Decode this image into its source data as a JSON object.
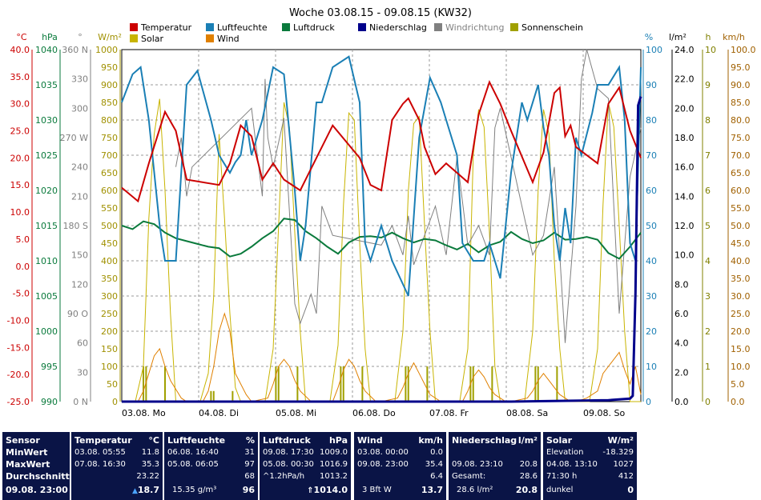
{
  "title": "Woche 03.08.15 - 09.08.15 (KW32)",
  "legend": [
    {
      "label": "Temperatur",
      "color": "#cc0000"
    },
    {
      "label": "Luftfeuchte",
      "color": "#1a7fb5"
    },
    {
      "label": "Luftdruck",
      "color": "#0a7a3c"
    },
    {
      "label": "Niederschlag",
      "color": "#00008b"
    },
    {
      "label": "Windrichtung",
      "color": "#808080"
    },
    {
      "label": "Sonnenschein",
      "color": "#a0a000"
    },
    {
      "label": "Solar",
      "color": "#c8b400"
    },
    {
      "label": "Wind",
      "color": "#e08000"
    }
  ],
  "axes": {
    "temp": {
      "unit": "°C",
      "ticks": [
        "40.0",
        "35.0",
        "30.0",
        "25.0",
        "20.0",
        "15.0",
        "10.0",
        "5.0",
        "0.0",
        "-5.0",
        "-10.0",
        "-15.0",
        "-20.0",
        "-25.0"
      ],
      "color": "#cc0000"
    },
    "hpa": {
      "unit": "hPa",
      "ticks": [
        "1040",
        "1035",
        "1030",
        "1025",
        "1020",
        "1015",
        "1010",
        "1005",
        "1000",
        "995",
        "990"
      ],
      "color": "#0a7a3c"
    },
    "dir": {
      "unit": "°",
      "ticks": [
        "360 N",
        "330",
        "300",
        "270 W",
        "240",
        "210",
        "180 S",
        "150",
        "120",
        "90 O",
        "60",
        "30",
        "0 N"
      ],
      "color": "#808080"
    },
    "solar": {
      "unit": "W/m²",
      "ticks": [
        "1000",
        "950",
        "900",
        "850",
        "800",
        "750",
        "700",
        "650",
        "600",
        "550",
        "500",
        "450",
        "400",
        "350",
        "300",
        "250",
        "200",
        "150",
        "100",
        "50",
        "0"
      ],
      "color": "#a09000"
    },
    "hum": {
      "unit": "%",
      "ticks": [
        "100",
        "90",
        "80",
        "70",
        "60",
        "50",
        "40",
        "30",
        "20",
        "10",
        "0"
      ],
      "color": "#1a7fb5"
    },
    "rain": {
      "unit": "l/m²",
      "ticks": [
        "24.0",
        "22.0",
        "20.0",
        "18.0",
        "16.0",
        "14.0",
        "12.0",
        "10.0",
        "8.0",
        "6.0",
        "4.0",
        "2.0",
        "0.0"
      ],
      "color": "#000000"
    },
    "sun": {
      "unit": "h",
      "ticks": [
        "10",
        "9",
        "8",
        "7",
        "6",
        "5",
        "4",
        "3",
        "2",
        "1",
        "0"
      ],
      "color": "#808000"
    },
    "wind": {
      "unit": "km/h",
      "ticks": [
        "100.0",
        "95.0",
        "90.0",
        "85.0",
        "80.0",
        "75.0",
        "70.0",
        "65.0",
        "60.0",
        "55.0",
        "50.0",
        "45.0",
        "40.0",
        "35.0",
        "30.0",
        "25.0",
        "20.0",
        "15.0",
        "10.0",
        "5.0",
        "0.0"
      ],
      "color": "#a06000"
    }
  },
  "days": [
    "03.08.  Mo",
    "04.08.  Di",
    "05.08.  Mi",
    "06.08.  Do",
    "07.08.  Fr",
    "08.08.  Sa",
    "09.08.  So"
  ],
  "chart_data": {
    "type": "line",
    "title": "Woche 03.08.15 - 09.08.15 (KW32)",
    "x_days": [
      "03.08.",
      "04.08.",
      "05.08.",
      "06.08.",
      "07.08.",
      "08.08.",
      "09.08."
    ],
    "series": [
      {
        "name": "Temperatur",
        "axis": "°C",
        "x_hours": [
          0,
          6,
          10,
          16,
          20,
          24,
          36,
          40,
          44,
          48,
          52,
          56,
          60,
          66,
          72,
          78,
          88,
          92,
          96,
          100,
          104,
          106,
          110,
          112,
          116,
          120,
          128,
          132,
          136,
          140,
          144,
          152,
          156,
          160,
          162,
          164,
          166,
          168,
          176,
          180,
          184,
          188,
          192
        ],
        "values": [
          14.5,
          12.0,
          19.0,
          28.5,
          25.0,
          16.0,
          15.0,
          19.0,
          26.0,
          24.0,
          16.0,
          19.0,
          16.0,
          14.0,
          20.0,
          26.0,
          20.0,
          15.0,
          14.0,
          27.0,
          30.0,
          31.0,
          27.0,
          22.0,
          17.0,
          19.0,
          15.5,
          28.0,
          34.0,
          30.0,
          25.0,
          15.5,
          21.0,
          32.0,
          33.0,
          24.0,
          26.0,
          22.0,
          19.0,
          30.0,
          33.0,
          25.0,
          20.0
        ]
      },
      {
        "name": "Luftfeuchte",
        "axis": "%",
        "x_hours": [
          0,
          4,
          7,
          10,
          14,
          16,
          20,
          24,
          28,
          33,
          36,
          40,
          42,
          44,
          46,
          48,
          52,
          56,
          60,
          64,
          66,
          68,
          72,
          74,
          78,
          84,
          88,
          90,
          92,
          96,
          100,
          106,
          110,
          114,
          118,
          120,
          124,
          126,
          130,
          134,
          136,
          140,
          144,
          148,
          150,
          154,
          156,
          158,
          160,
          162,
          164,
          166,
          168,
          170,
          174,
          176,
          180,
          184,
          186,
          188,
          190,
          192
        ],
        "values": [
          85,
          93,
          95,
          80,
          50,
          40,
          40,
          90,
          94,
          80,
          70,
          65,
          68,
          70,
          80,
          70,
          80,
          95,
          93,
          60,
          40,
          50,
          85,
          85,
          95,
          98,
          85,
          45,
          40,
          50,
          40,
          30,
          75,
          92,
          85,
          80,
          70,
          45,
          40,
          40,
          45,
          35,
          65,
          85,
          80,
          90,
          78,
          70,
          50,
          40,
          55,
          45,
          75,
          70,
          82,
          90,
          90,
          95,
          80,
          45,
          40,
          95
        ]
      },
      {
        "name": "Luftdruck",
        "axis": "hPa",
        "x_hours": [
          0,
          4,
          8,
          12,
          16,
          20,
          24,
          28,
          32,
          36,
          40,
          44,
          48,
          52,
          56,
          60,
          64,
          68,
          72,
          76,
          80,
          84,
          88,
          92,
          96,
          100,
          104,
          108,
          112,
          116,
          120,
          124,
          128,
          132,
          136,
          140,
          144,
          148,
          152,
          156,
          160,
          164,
          168,
          172,
          176,
          180,
          184,
          188,
          192
        ],
        "values": [
          1015.0,
          1014.5,
          1015.6,
          1015.2,
          1014.0,
          1013.2,
          1012.8,
          1012.4,
          1012.0,
          1011.8,
          1010.6,
          1011.0,
          1012.0,
          1013.2,
          1014.2,
          1016.0,
          1015.8,
          1014.2,
          1013.2,
          1012.0,
          1011.0,
          1012.6,
          1013.4,
          1013.5,
          1013.3,
          1014.0,
          1013.2,
          1012.6,
          1013.1,
          1012.9,
          1012.2,
          1011.6,
          1012.4,
          1011.2,
          1012.2,
          1012.7,
          1014.1,
          1013.1,
          1012.5,
          1012.9,
          1014.0,
          1013.0,
          1013.1,
          1013.4,
          1013.0,
          1011.1,
          1010.3,
          1012.0,
          1014.0
        ]
      },
      {
        "name": "Niederschlag",
        "axis": "l/m²",
        "x_hours": [
          0,
          96,
          144,
          180,
          188,
          189,
          190,
          191,
          192
        ],
        "values": [
          0,
          0,
          0,
          0.1,
          0.2,
          0.4,
          7.4,
          20.2,
          20.8
        ]
      },
      {
        "name": "Windrichtung",
        "axis": "°",
        "x_hours": [
          20,
          22,
          24,
          26,
          48,
          52,
          53,
          54,
          56,
          60,
          64,
          66,
          70,
          72,
          74,
          78,
          96,
          100,
          104,
          106,
          108,
          112,
          116,
          120,
          124,
          128,
          132,
          136,
          138,
          140,
          144,
          148,
          152,
          156,
          160,
          162,
          164,
          168,
          170,
          172,
          176,
          180,
          184,
          188,
          192
        ],
        "values": [
          240,
          270,
          210,
          240,
          300,
          210,
          330,
          270,
          240,
          290,
          100,
          80,
          110,
          90,
          200,
          170,
          160,
          180,
          150,
          190,
          140,
          170,
          200,
          150,
          250,
          160,
          180,
          150,
          280,
          300,
          250,
          200,
          150,
          170,
          240,
          150,
          60,
          200,
          330,
          360,
          320,
          310,
          90,
          230,
          280
        ]
      },
      {
        "name": "Sonnenschein",
        "axis": "h",
        "x_hours": [
          0,
          7,
          8,
          9,
          16,
          17,
          32,
          33,
          34,
          41,
          42,
          56,
          57,
          58,
          65,
          66,
          80,
          81,
          82,
          89,
          90,
          104,
          105,
          106,
          113,
          114,
          128,
          129,
          130,
          137,
          138,
          152,
          153,
          154,
          161,
          162,
          192
        ],
        "values": [
          0,
          0,
          1,
          1,
          1,
          0,
          0,
          0.3,
          0.3,
          0.3,
          0,
          0,
          1,
          1,
          1,
          0,
          0,
          1,
          1,
          1,
          0,
          0,
          1,
          1,
          1,
          0,
          0,
          1,
          1,
          1,
          0,
          0,
          1,
          1,
          1,
          0,
          0
        ]
      },
      {
        "name": "Solar",
        "axis": "W/m²",
        "x_hours": [
          0,
          5,
          8,
          10,
          12,
          14,
          16,
          18,
          20,
          24,
          29,
          32,
          34,
          36,
          38,
          40,
          42,
          44,
          48,
          53,
          56,
          58,
          60,
          62,
          64,
          66,
          68,
          72,
          77,
          80,
          82,
          84,
          86,
          88,
          90,
          92,
          96,
          101,
          104,
          106,
          108,
          110,
          112,
          114,
          116,
          120,
          125,
          128,
          130,
          132,
          134,
          136,
          138,
          140,
          144,
          149,
          152,
          154,
          156,
          158,
          160,
          162,
          164,
          168,
          173,
          176,
          178,
          180,
          182,
          184,
          186,
          188,
          192
        ],
        "values": [
          0,
          0,
          100,
          520,
          760,
          860,
          600,
          250,
          0,
          0,
          0,
          80,
          300,
          760,
          520,
          250,
          40,
          0,
          0,
          0,
          150,
          500,
          850,
          780,
          480,
          200,
          0,
          0,
          0,
          160,
          560,
          820,
          800,
          450,
          150,
          0,
          0,
          0,
          200,
          600,
          790,
          810,
          500,
          200,
          0,
          0,
          0,
          150,
          700,
          830,
          780,
          480,
          100,
          0,
          0,
          0,
          200,
          600,
          830,
          760,
          400,
          150,
          0,
          0,
          0,
          150,
          560,
          850,
          780,
          500,
          200,
          0,
          0
        ]
      },
      {
        "name": "Wind",
        "axis": "km/h",
        "x_hours": [
          0,
          6,
          8,
          10,
          12,
          14,
          16,
          18,
          22,
          24,
          30,
          32,
          34,
          36,
          38,
          40,
          42,
          46,
          48,
          54,
          56,
          58,
          60,
          62,
          64,
          66,
          70,
          72,
          78,
          80,
          82,
          84,
          86,
          88,
          90,
          94,
          96,
          102,
          104,
          106,
          108,
          110,
          112,
          114,
          118,
          120,
          126,
          128,
          130,
          132,
          134,
          136,
          138,
          142,
          144,
          150,
          152,
          154,
          156,
          158,
          160,
          162,
          166,
          168,
          172,
          176,
          178,
          180,
          182,
          184,
          186,
          188,
          190,
          192
        ],
        "values": [
          0,
          0,
          3,
          8,
          13,
          15,
          10,
          6,
          1,
          0,
          0,
          3,
          10,
          20,
          25,
          20,
          8,
          2,
          0,
          1,
          5,
          10,
          12,
          10,
          6,
          3,
          0,
          0,
          0,
          4,
          9,
          12,
          10,
          6,
          3,
          0,
          0,
          1,
          4,
          8,
          11,
          8,
          5,
          2,
          0,
          0,
          0,
          3,
          7,
          9,
          7,
          4,
          2,
          0,
          0,
          1,
          3,
          6,
          8,
          6,
          4,
          2,
          0,
          0,
          1,
          3,
          8,
          10,
          12,
          14,
          9,
          5,
          10,
          2
        ]
      }
    ],
    "xlim_hours": [
      0,
      192
    ]
  },
  "stats": {
    "sensor": {
      "title": "Sensor",
      "rows": [
        "MinWert",
        "MaxWert",
        "Durchschnitt"
      ],
      "footer": "09.08. 23:00"
    },
    "temperatur": {
      "title": "Temperatur",
      "unit": "°C",
      "min_time": "03.08. 05:55",
      "min": "11.8",
      "max_time": "07.08. 16:30",
      "max": "35.3",
      "avg": "23.22",
      "current": "18.7"
    },
    "luftfeuchte": {
      "title": "Luftfeuchte",
      "unit": "%",
      "min_time": "06.08. 16:40",
      "min": "31",
      "max_time": "05.08. 06:05",
      "max": "97",
      "avg": "68",
      "abs": "15.35 g/m³",
      "current": "96"
    },
    "luftdruck": {
      "title": "Luftdruck",
      "unit": "hPa",
      "min_time": "09.08. 17:30",
      "min": "1009.0",
      "max_time": "05.08. 00:30",
      "max": "1016.9",
      "trend": "^1.2hPa/h",
      "avg": "1013.2",
      "current": "1014.0"
    },
    "wind": {
      "title": "Wind",
      "unit": "km/h",
      "min_time": "03.08. 00:00",
      "min": "0.0",
      "max_time": "09.08. 23:00",
      "max": "35.4",
      "avg": "6.4",
      "bft": "3 Bft W",
      "current": "13.7"
    },
    "niederschlag": {
      "title": "Niederschlag",
      "unit": "l/m²",
      "row2_time": "09.08. 23:10",
      "row2": "20.8",
      "gesamt_label": "Gesamt:",
      "gesamt": "28.6",
      "total": "28.6 l/m²",
      "current": "20.8"
    },
    "solar": {
      "title": "Solar",
      "unit": "W/m²",
      "elev_label": "Elevation",
      "elev": "-18.329",
      "max_time": "04.08. 13:10",
      "max": "1027",
      "sun_hours": "71:30 h",
      "avg": "412",
      "state": "dunkel",
      "current": "0"
    }
  }
}
